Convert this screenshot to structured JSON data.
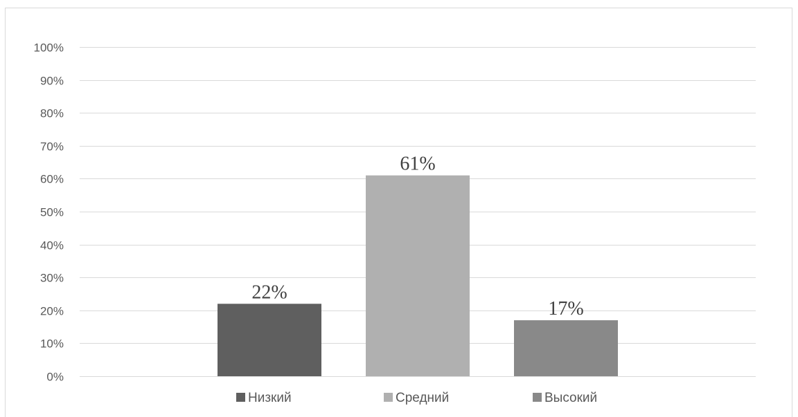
{
  "chart_data": {
    "type": "bar",
    "title": "",
    "xlabel": "",
    "ylabel": "",
    "ylim": [
      0,
      100
    ],
    "y_ticks": [
      "0%",
      "10%",
      "20%",
      "30%",
      "40%",
      "50%",
      "60%",
      "70%",
      "80%",
      "90%",
      "100%"
    ],
    "grid": true,
    "legend_position": "bottom",
    "series": [
      {
        "name": "Низкий",
        "value": 22,
        "label": "22%",
        "color": "#5f5f5f"
      },
      {
        "name": "Средний",
        "value": 61,
        "label": "61%",
        "color": "#b0b0b0"
      },
      {
        "name": "Высокий",
        "value": 17,
        "label": "17%",
        "color": "#898989"
      }
    ]
  }
}
